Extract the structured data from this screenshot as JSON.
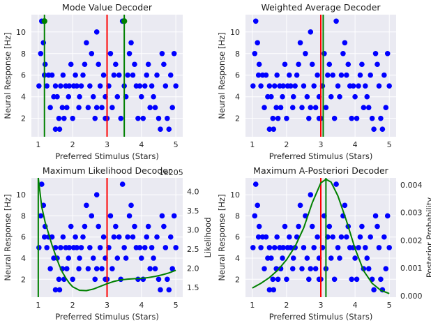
{
  "chart_data": [
    {
      "type": "scatter",
      "title": "Mode Value Decoder",
      "xlabel": "Preferred Stimulus (Stars)",
      "ylabel": "Neural Response [Hz]",
      "xlim": [
        0.8,
        5.2
      ],
      "ylim": [
        0.3,
        11.6
      ],
      "xticks": [
        "1",
        "2",
        "3",
        "4",
        "5"
      ],
      "yticks": [
        "2",
        "4",
        "6",
        "8",
        "10"
      ],
      "grid": true,
      "vlines": [
        {
          "x": 3.0,
          "color": "#ff0000"
        },
        {
          "x": 1.18,
          "color": "#008000"
        },
        {
          "x": 3.5,
          "color": "#008000"
        }
      ],
      "markers": [
        {
          "x": 1.18,
          "y": 11,
          "color": "#008000"
        },
        {
          "x": 3.5,
          "y": 11,
          "color": "#008000"
        }
      ]
    },
    {
      "type": "scatter",
      "title": "Weighted Average Decoder",
      "xlabel": "Preferred Stimulus (Stars)",
      "ylabel": "Neural Response [Hz]",
      "xlim": [
        0.8,
        5.2
      ],
      "ylim": [
        0.3,
        11.6
      ],
      "xticks": [
        "1",
        "2",
        "3",
        "4",
        "5"
      ],
      "yticks": [
        "2",
        "4",
        "6",
        "8",
        "10"
      ],
      "grid": true,
      "vlines": [
        {
          "x": 3.0,
          "color": "#ff0000"
        },
        {
          "x": 3.07,
          "color": "#008000"
        }
      ]
    },
    {
      "type": "scatter",
      "title": "Maximum Likelihood Decoder",
      "xlabel": "Preferred Stimulus (Stars)",
      "ylabel": "Neural Response [Hz]",
      "y2label": "Likelihood",
      "y2_offset_text": "1e205",
      "xlim": [
        0.8,
        5.2
      ],
      "ylim": [
        0.3,
        11.6
      ],
      "y2lim": [
        1.25,
        4.35
      ],
      "xticks": [
        "1",
        "2",
        "3",
        "4",
        "5"
      ],
      "yticks": [
        "2",
        "4",
        "6",
        "8",
        "10"
      ],
      "y2ticks": [
        "1.5",
        "2.0",
        "2.5",
        "3.0",
        "3.5",
        "4.0"
      ],
      "grid": true,
      "vlines": [
        {
          "x": 3.0,
          "color": "#ff0000"
        },
        {
          "x": 1.0,
          "color": "#008000"
        }
      ],
      "curve": {
        "color": "#008000",
        "axis": "y2",
        "x": [
          1.0,
          1.1,
          1.2,
          1.3,
          1.4,
          1.5,
          1.6,
          1.7,
          1.8,
          1.9,
          2.0,
          2.2,
          2.4,
          2.6,
          2.8,
          3.0,
          3.2,
          3.4,
          3.6,
          3.8,
          4.0,
          4.2,
          4.4,
          4.6,
          4.8,
          5.0
        ],
        "y": [
          4.35,
          3.6,
          3.2,
          2.9,
          2.6,
          2.35,
          2.1,
          1.9,
          1.75,
          1.62,
          1.52,
          1.43,
          1.42,
          1.46,
          1.53,
          1.6,
          1.66,
          1.7,
          1.72,
          1.73,
          1.74,
          1.76,
          1.79,
          1.83,
          1.88,
          1.95
        ]
      }
    },
    {
      "type": "scatter",
      "title": "Maximum A-Posteriori Decoder",
      "xlabel": "Preferred Stimulus (Stars)",
      "ylabel": "Neural Response [Hz]",
      "y2label": "Posterior Probability",
      "xlim": [
        0.8,
        5.2
      ],
      "ylim": [
        0.3,
        11.6
      ],
      "y2lim": [
        -5e-05,
        0.00425
      ],
      "xticks": [
        "1",
        "2",
        "3",
        "4",
        "5"
      ],
      "yticks": [
        "2",
        "4",
        "6",
        "8",
        "10"
      ],
      "y2ticks": [
        "0.000",
        "0.001",
        "0.002",
        "0.003",
        "0.004"
      ],
      "grid": true,
      "vlines": [
        {
          "x": 3.0,
          "color": "#ff0000"
        },
        {
          "x": 3.15,
          "color": "#008000"
        }
      ],
      "curve": {
        "color": "#008000",
        "axis": "y2",
        "x": [
          1.0,
          1.25,
          1.5,
          1.75,
          2.0,
          2.25,
          2.5,
          2.75,
          3.0,
          3.15,
          3.3,
          3.5,
          3.75,
          4.0,
          4.25,
          4.5,
          4.75,
          5.0
        ],
        "y": [
          0.00028,
          0.00045,
          0.00066,
          0.00093,
          0.0013,
          0.00178,
          0.00245,
          0.00335,
          0.00407,
          0.0042,
          0.0041,
          0.0036,
          0.0027,
          0.0017,
          0.0009,
          0.00045,
          0.0002,
          8e-05
        ]
      }
    }
  ],
  "scatter_points": {
    "color": "#0000ff",
    "x": [
      1.02,
      1.07,
      1.1,
      1.15,
      1.18,
      1.2,
      1.25,
      1.3,
      1.35,
      1.4,
      1.45,
      1.5,
      1.5,
      1.55,
      1.6,
      1.62,
      1.65,
      1.7,
      1.72,
      1.75,
      1.8,
      1.83,
      1.88,
      1.9,
      1.95,
      2.0,
      2.03,
      2.08,
      2.12,
      2.18,
      2.2,
      2.25,
      2.3,
      2.35,
      2.4,
      2.45,
      2.5,
      2.55,
      2.6,
      2.65,
      2.7,
      2.7,
      2.75,
      2.8,
      2.85,
      2.9,
      2.95,
      2.95,
      3.0,
      3.05,
      3.1,
      3.15,
      3.2,
      3.25,
      3.3,
      3.35,
      3.4,
      3.45,
      3.5,
      3.55,
      3.6,
      3.65,
      3.7,
      3.75,
      3.8,
      3.85,
      3.9,
      3.95,
      4.0,
      4.05,
      4.1,
      4.15,
      4.2,
      4.25,
      4.3,
      4.35,
      4.4,
      4.45,
      4.5,
      4.55,
      4.6,
      4.65,
      4.7,
      4.75,
      4.8,
      4.85,
      4.9,
      4.95,
      5.0
    ],
    "y": [
      5,
      8,
      11,
      9,
      6,
      7,
      5,
      6,
      3,
      6,
      4,
      1,
      5,
      4,
      2,
      1,
      5,
      3,
      6,
      2,
      5,
      3,
      4,
      5,
      7,
      2,
      5,
      6,
      5,
      3,
      4,
      5,
      6,
      7,
      9,
      3,
      5,
      8,
      4,
      2,
      3,
      10,
      7,
      5,
      3,
      6,
      4,
      2,
      2,
      5,
      8,
      3,
      6,
      7,
      4,
      6,
      2,
      11,
      5,
      4,
      6,
      8,
      9,
      6,
      7,
      5,
      2,
      5,
      4,
      2,
      5,
      6,
      7,
      3,
      5,
      4,
      3,
      6,
      2,
      1,
      8,
      7,
      5,
      2,
      1,
      6,
      3,
      8,
      5
    ]
  }
}
